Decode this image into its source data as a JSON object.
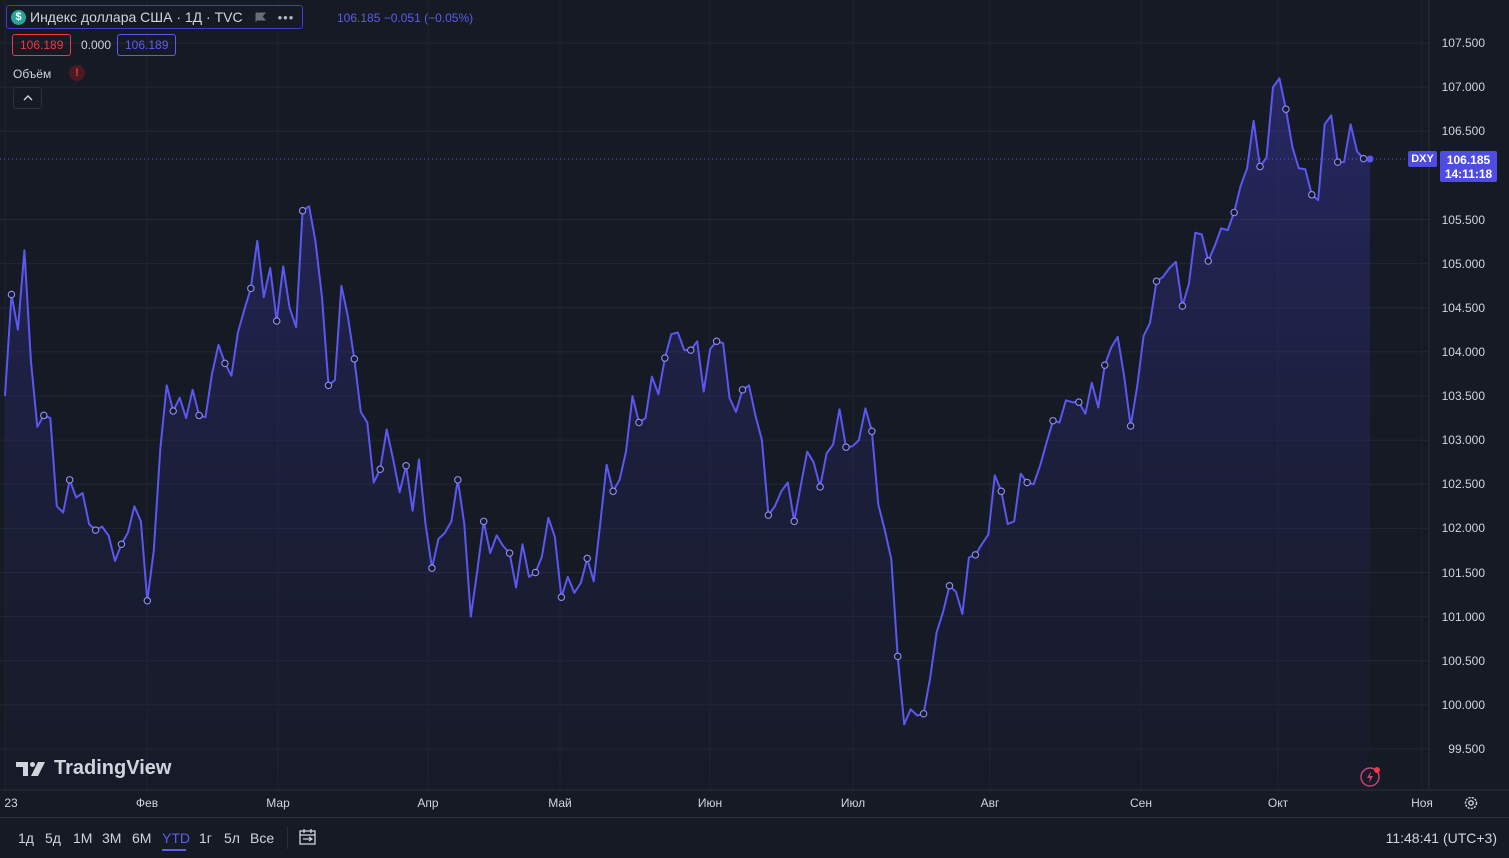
{
  "header": {
    "symbol_icon": "dollar-icon",
    "title": "Индекс доллара США · 1Д · TVC",
    "more_label": "•••",
    "ohlc_text": "106.185 −0.051 (−0.05%)",
    "bid": "106.189",
    "spread": "0.000",
    "ask": "106.189",
    "volume_label": "Объём",
    "warning_icon": "!",
    "collapse_icon": "^"
  },
  "price_tag": {
    "symbol": "DXY",
    "price": "106.185",
    "countdown": "14:11:18"
  },
  "branding": {
    "logo_text": "TradingView"
  },
  "bottom_bar": {
    "ranges": [
      "1д",
      "5д",
      "1М",
      "3М",
      "6М",
      "YTD",
      "1г",
      "5л",
      "Все"
    ],
    "active_range": "YTD",
    "clock": "11:48:41 (UTC+3)"
  },
  "colors": {
    "background": "#161a25",
    "line": "#5b57f0",
    "grid": "#232733",
    "bid_border": "#f23645",
    "ask_border": "#5d5cf0"
  },
  "chart_data": {
    "type": "area",
    "series": [
      {
        "values": [
          103.5,
          104.65,
          104.25,
          105.15,
          103.9,
          103.15,
          103.28,
          103.25,
          102.25,
          102.18,
          102.55,
          102.35,
          102.4,
          102.05,
          101.98,
          102.02,
          101.92,
          101.63,
          101.82,
          101.95,
          102.25,
          102.08,
          101.18,
          101.75,
          102.9,
          103.62,
          103.33,
          103.48,
          103.25,
          103.57,
          103.28,
          103.26,
          103.75,
          104.08,
          103.87,
          103.73,
          104.22,
          104.48,
          104.72,
          105.26,
          104.62,
          104.95,
          104.35,
          104.97,
          104.5,
          104.28,
          105.6,
          105.65,
          105.25,
          104.62,
          103.62,
          103.68,
          104.75,
          104.4,
          103.92,
          103.32,
          103.2,
          102.52,
          102.67,
          103.12,
          102.78,
          102.41,
          102.71,
          102.2,
          102.78,
          102.05,
          101.55,
          101.88,
          101.95,
          102.08,
          102.55,
          102.05,
          101.0,
          101.52,
          102.08,
          101.72,
          101.92,
          101.8,
          101.72,
          101.33,
          101.82,
          101.45,
          101.5,
          101.68,
          102.12,
          101.9,
          101.22,
          101.45,
          101.27,
          101.38,
          101.66,
          101.4,
          102.05,
          102.72,
          102.42,
          102.55,
          102.87,
          103.5,
          103.2,
          103.25,
          103.72,
          103.52,
          103.93,
          104.2,
          104.22,
          104.02,
          104.02,
          104.12,
          103.55,
          104.03,
          104.12,
          104.1,
          103.48,
          103.32,
          103.57,
          103.62,
          103.28,
          103.0,
          102.15,
          102.25,
          102.42,
          102.52,
          102.08,
          102.48,
          102.87,
          102.75,
          102.47,
          102.85,
          102.95,
          103.35,
          102.92,
          102.93,
          103.0,
          103.36,
          103.1,
          102.27,
          101.98,
          101.65,
          100.55,
          99.78,
          99.95,
          99.88,
          99.9,
          100.3,
          100.82,
          101.05,
          101.35,
          101.28,
          101.03,
          101.67,
          101.7,
          101.82,
          101.93,
          102.6,
          102.42,
          102.05,
          102.08,
          102.62,
          102.52,
          102.5,
          102.71,
          102.97,
          103.22,
          103.2,
          103.45,
          103.43,
          103.43,
          103.3,
          103.65,
          103.37,
          103.85,
          104.05,
          104.17,
          103.72,
          103.16,
          103.6,
          104.18,
          104.33,
          104.8,
          104.85,
          104.95,
          105.02,
          104.52,
          104.77,
          105.35,
          105.33,
          105.03,
          105.2,
          105.4,
          105.38,
          105.58,
          105.88,
          106.08,
          106.62,
          106.1,
          106.2,
          107.0,
          107.1,
          106.75,
          106.32,
          106.08,
          106.07,
          105.78,
          105.72,
          106.58,
          106.68,
          106.15,
          106.15,
          106.58,
          106.27,
          106.19,
          106.185
        ],
        "markers": [
          1,
          6,
          10,
          14,
          18,
          22,
          26,
          30,
          34,
          38,
          42,
          46,
          50,
          54,
          58,
          62,
          66,
          70,
          74,
          78,
          82,
          86,
          90,
          94,
          98,
          102,
          106,
          110,
          114,
          118,
          122,
          126,
          130,
          134,
          138,
          142,
          146,
          150,
          154,
          158,
          162,
          166,
          170,
          174,
          178,
          182,
          186,
          190,
          194,
          198,
          202,
          206,
          210,
          214,
          218,
          222
        ]
      }
    ],
    "x_labels": [
      "23",
      "Фев",
      "Мар",
      "Апр",
      "Май",
      "Июн",
      "Июл",
      "Авг",
      "Сен",
      "Окт",
      "Ноя"
    ],
    "y_ticks": [
      "107.500",
      "107.000",
      "106.500",
      "105.500",
      "105.000",
      "104.500",
      "104.000",
      "103.500",
      "103.000",
      "102.500",
      "102.000",
      "101.500",
      "101.000",
      "100.500",
      "100.000",
      "99.500"
    ],
    "ylim": [
      99.3,
      107.7
    ],
    "last_price": 106.185,
    "grid": true,
    "ylabel": "",
    "xlabel": "",
    "title": ""
  }
}
